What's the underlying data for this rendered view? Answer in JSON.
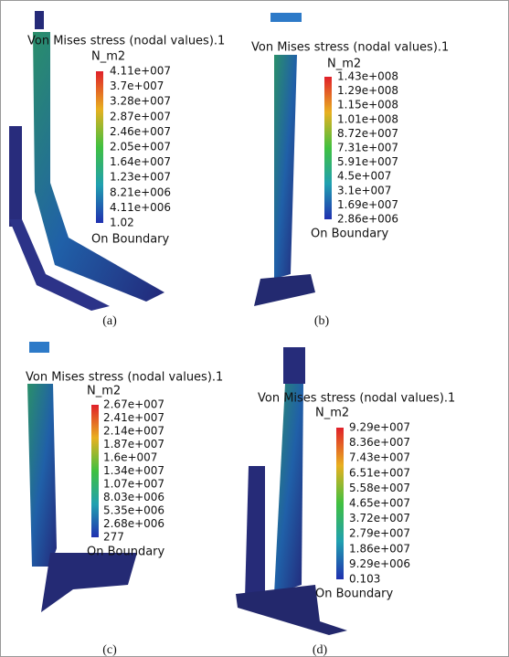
{
  "panels": [
    {
      "title": "Von Mises stress (nodal values).1",
      "unit": "N_m2",
      "labels": [
        "4.11e+007",
        "3.7e+007",
        "3.28e+007",
        "2.87e+007",
        "2.46e+007",
        "2.05e+007",
        "1.64e+007",
        "1.23e+007",
        "8.21e+006",
        "4.11e+006",
        "1.02"
      ],
      "footer": "On Boundary",
      "caption": "(a)"
    },
    {
      "title": "Von Mises stress (nodal values).1",
      "unit": "N_m2",
      "labels": [
        "1.43e+008",
        "1.29e+008",
        "1.15e+008",
        "1.01e+008",
        "8.72e+007",
        "7.31e+007",
        "5.91e+007",
        "4.5e+007",
        "3.1e+007",
        "1.69e+007",
        "2.86e+006"
      ],
      "footer": "On Boundary",
      "caption": "(b)"
    },
    {
      "title": "Von Mises stress (nodal values).1",
      "unit": "N_m2",
      "labels": [
        "2.67e+007",
        "2.41e+007",
        "2.14e+007",
        "1.87e+007",
        "1.6e+007",
        "1.34e+007",
        "1.07e+007",
        "8.03e+006",
        "5.35e+006",
        "2.68e+006",
        "277"
      ],
      "footer": "On Boundary",
      "caption": "(c)"
    },
    {
      "title": "Von Mises stress (nodal values).1",
      "unit": "N_m2",
      "labels": [
        "9.29e+007",
        "8.36e+007",
        "7.43e+007",
        "6.51e+007",
        "5.58e+007",
        "4.65e+007",
        "3.72e+007",
        "2.79e+007",
        "1.86e+007",
        "9.29e+006",
        "0.103"
      ],
      "footer": "On Boundary",
      "caption": "(d)"
    }
  ]
}
